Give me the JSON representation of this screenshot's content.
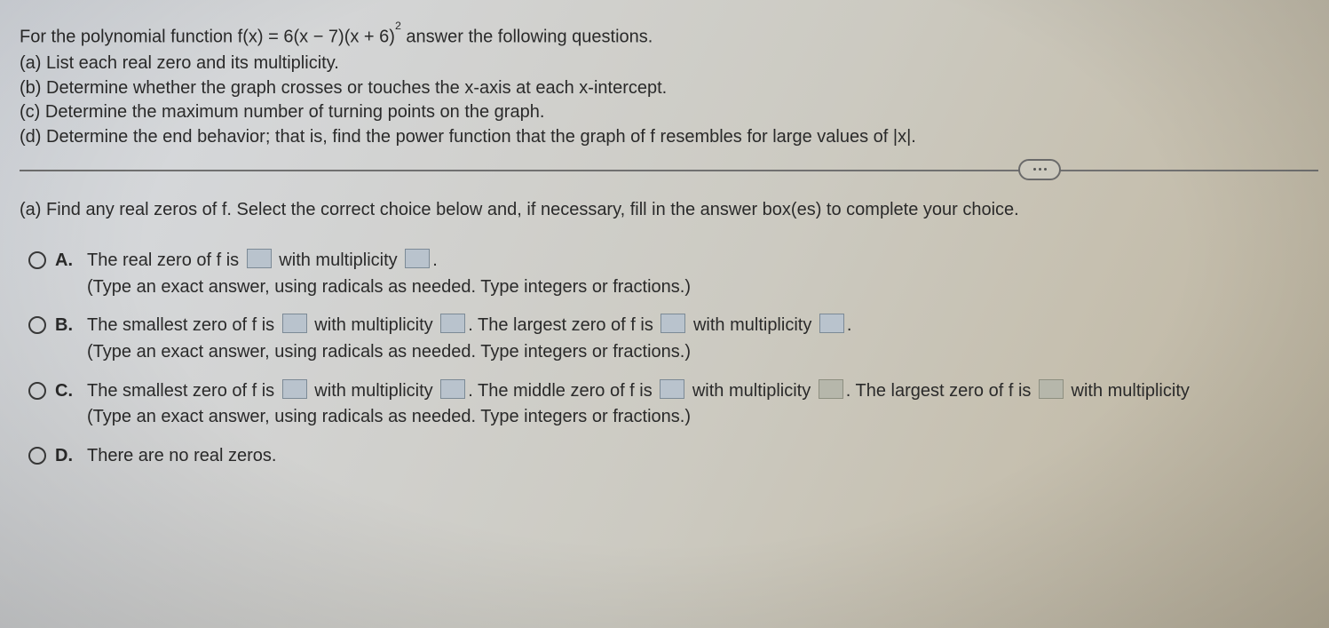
{
  "problem": {
    "main": "For the polynomial function f(x) = 6(x − 7)(x + 6)",
    "exponent": "2",
    "main_after": "  answer the following questions.",
    "a": "(a) List each real zero and its multiplicity.",
    "b": "(b) Determine whether the graph crosses or touches the x-axis at each x-intercept.",
    "c": "(c) Determine the maximum number of turning points on the graph.",
    "d_pre": "(d) Determine the end behavior; that is, find the power function that the graph of f resembles for large values of ",
    "d_abs": "|x|",
    "d_post": "."
  },
  "prompt_a": "(a) Find any real zeros of f. Select the correct choice below and, if necessary, fill in the answer box(es) to complete your choice.",
  "hint": "(Type an exact answer, using radicals as needed. Type integers or fractions.)",
  "choices": {
    "A": {
      "letter": "A.",
      "t1": "The real zero of f is ",
      "t2": " with multiplicity ",
      "t3": "."
    },
    "B": {
      "letter": "B.",
      "t1": "The smallest zero of f is ",
      "t2": " with multiplicity ",
      "t3": ". The largest zero of f is ",
      "t4": " with multiplicity ",
      "t5": "."
    },
    "C": {
      "letter": "C.",
      "t1": "The smallest zero of f is ",
      "t2": " with multiplicity ",
      "t3": ". The middle zero of f is ",
      "t4": " with multiplicity ",
      "t5": ". The largest zero of f is ",
      "t6": " with multiplicity "
    },
    "D": {
      "letter": "D.",
      "t1": "There are no real zeros."
    }
  }
}
